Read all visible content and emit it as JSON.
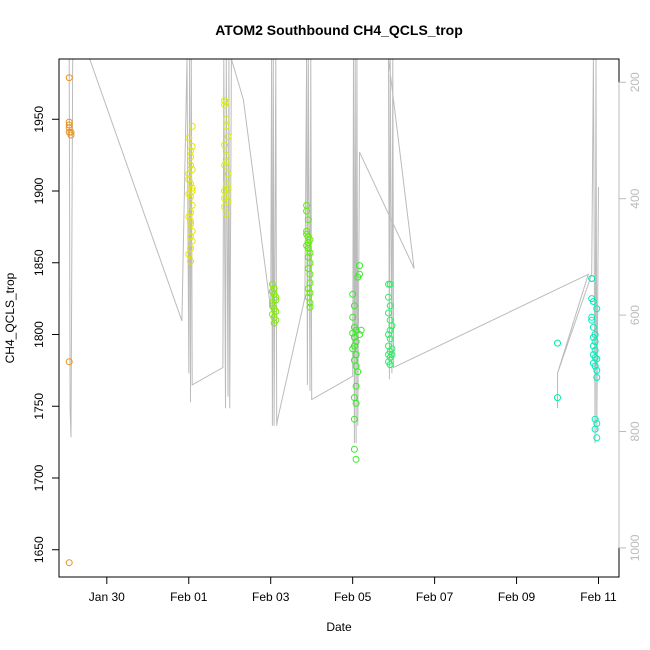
{
  "chart_data": {
    "type": "scatter",
    "title": "ATOM2 Southbound CH4_QCLS_trop",
    "xlabel": "Date",
    "ylabel": "CH4_QCLS_trop",
    "x_is_date": true,
    "xlim": [
      "2017-01-28T20:00",
      "2017-02-11T12:00"
    ],
    "ylim": [
      1631,
      1992
    ],
    "y2lim": [
      1050,
      160
    ],
    "x_ticks": [
      {
        "date": "2017-01-30",
        "label": "Jan 30"
      },
      {
        "date": "2017-02-01",
        "label": "Feb 01"
      },
      {
        "date": "2017-02-03",
        "label": "Feb 03"
      },
      {
        "date": "2017-02-05",
        "label": "Feb 05"
      },
      {
        "date": "2017-02-07",
        "label": "Feb 07"
      },
      {
        "date": "2017-02-09",
        "label": "Feb 09"
      },
      {
        "date": "2017-02-11",
        "label": "Feb 11"
      }
    ],
    "y_ticks": [
      1650,
      1700,
      1750,
      1800,
      1850,
      1900,
      1950
    ],
    "y2_ticks": [
      200,
      400,
      600,
      800,
      1000
    ],
    "grid": false,
    "legend": "none",
    "series": [
      {
        "color": "#E8931E",
        "points": [
          [
            "2017-01-29T02:00",
            1979
          ],
          [
            "2017-01-29T02:00",
            1948
          ],
          [
            "2017-01-29T02:00",
            1946
          ],
          [
            "2017-01-29T02:00",
            1944
          ],
          [
            "2017-01-29T02:00",
            1941
          ],
          [
            "2017-01-29T03:00",
            1939
          ],
          [
            "2017-01-29T03:00",
            1941
          ],
          [
            "2017-01-29T02:00",
            1781
          ],
          [
            "2017-01-29T02:00",
            1641
          ]
        ]
      },
      {
        "color": "#E6E600",
        "points": [
          [
            "2017-02-01T00:00",
            1937
          ],
          [
            "2017-02-01T01:00",
            1928
          ],
          [
            "2017-02-01T01:00",
            1924
          ],
          [
            "2017-02-01T02:00",
            1945
          ],
          [
            "2017-02-01T01:00",
            1918
          ],
          [
            "2017-02-01T00:00",
            1912
          ],
          [
            "2017-02-01T01:00",
            1905
          ],
          [
            "2017-02-01T02:00",
            1902
          ],
          [
            "2017-02-01T00:00",
            1898
          ],
          [
            "2017-02-01T01:00",
            1896
          ],
          [
            "2017-02-01T02:00",
            1890
          ],
          [
            "2017-02-01T01:00",
            1885
          ],
          [
            "2017-02-01T00:00",
            1882
          ],
          [
            "2017-02-01T01:00",
            1877
          ],
          [
            "2017-02-01T02:00",
            1872
          ],
          [
            "2017-02-01T01:00",
            1868
          ],
          [
            "2017-02-01T02:00",
            1865
          ],
          [
            "2017-02-01T01:00",
            1860
          ],
          [
            "2017-02-01T00:00",
            1856
          ],
          [
            "2017-02-01T01:00",
            1851
          ],
          [
            "2017-02-01T02:00",
            1915
          ],
          [
            "2017-02-01T00:00",
            1908
          ],
          [
            "2017-02-01T02:00",
            1931
          ],
          [
            "2017-02-01T01:00",
            1879
          ],
          [
            "2017-02-01T02:00",
            1900
          ]
        ]
      },
      {
        "color": "#D8F000",
        "points": [
          [
            "2017-02-01T21:00",
            1963
          ],
          [
            "2017-02-01T22:00",
            1962
          ],
          [
            "2017-02-01T21:00",
            1960
          ],
          [
            "2017-02-01T22:00",
            1950
          ],
          [
            "2017-02-01T22:00",
            1945
          ],
          [
            "2017-02-01T23:00",
            1938
          ],
          [
            "2017-02-01T21:00",
            1932
          ],
          [
            "2017-02-01T22:00",
            1925
          ],
          [
            "2017-02-01T21:00",
            1918
          ],
          [
            "2017-02-01T23:00",
            1912
          ],
          [
            "2017-02-01T22:00",
            1905
          ],
          [
            "2017-02-01T21:00",
            1900
          ],
          [
            "2017-02-01T22:00",
            1897
          ],
          [
            "2017-02-01T23:00",
            1893
          ],
          [
            "2017-02-01T21:00",
            1889
          ],
          [
            "2017-02-01T22:00",
            1884
          ],
          [
            "2017-02-01T21:00",
            1895
          ],
          [
            "2017-02-01T23:00",
            1902
          ],
          [
            "2017-02-01T22:00",
            1920
          ]
        ]
      },
      {
        "color": "#80EE00",
        "points": [
          [
            "2017-02-03T01:00",
            1835
          ],
          [
            "2017-02-03T02:00",
            1832
          ],
          [
            "2017-02-03T01:00",
            1830
          ],
          [
            "2017-02-03T02:00",
            1828
          ],
          [
            "2017-02-03T03:00",
            1826
          ],
          [
            "2017-02-03T01:00",
            1822
          ],
          [
            "2017-02-03T02:00",
            1818
          ],
          [
            "2017-02-03T03:00",
            1816
          ],
          [
            "2017-02-03T01:00",
            1814
          ],
          [
            "2017-02-03T02:00",
            1812
          ],
          [
            "2017-02-03T03:00",
            1810
          ],
          [
            "2017-02-03T02:00",
            1808
          ],
          [
            "2017-02-03T01:00",
            1820
          ],
          [
            "2017-02-03T03:00",
            1824
          ]
        ]
      },
      {
        "color": "#5FEE00",
        "points": [
          [
            "2017-02-03T21:00",
            1890
          ],
          [
            "2017-02-03T21:00",
            1886
          ],
          [
            "2017-02-03T22:00",
            1880
          ],
          [
            "2017-02-03T21:00",
            1872
          ],
          [
            "2017-02-03T22:00",
            1868
          ],
          [
            "2017-02-03T23:00",
            1866
          ],
          [
            "2017-02-03T22:00",
            1864
          ],
          [
            "2017-02-03T21:00",
            1862
          ],
          [
            "2017-02-03T22:00",
            1860
          ],
          [
            "2017-02-03T23:00",
            1857
          ],
          [
            "2017-02-03T22:00",
            1854
          ],
          [
            "2017-02-03T23:00",
            1850
          ],
          [
            "2017-02-03T22:00",
            1846
          ],
          [
            "2017-02-03T23:00",
            1836
          ],
          [
            "2017-02-03T22:00",
            1832
          ],
          [
            "2017-02-03T23:00",
            1829
          ],
          [
            "2017-02-03T22:00",
            1826
          ],
          [
            "2017-02-03T23:00",
            1822
          ],
          [
            "2017-02-03T23:00",
            1819
          ],
          [
            "2017-02-03T21:00",
            1870
          ],
          [
            "2017-02-03T23:00",
            1842
          ]
        ]
      },
      {
        "color": "#33EE22",
        "points": [
          [
            "2017-02-05T00:00",
            1828
          ],
          [
            "2017-02-05T01:00",
            1820
          ],
          [
            "2017-02-05T00:00",
            1812
          ],
          [
            "2017-02-05T01:00",
            1805
          ],
          [
            "2017-02-05T02:00",
            1803
          ],
          [
            "2017-02-05T00:00",
            1801
          ],
          [
            "2017-02-05T01:00",
            1798
          ],
          [
            "2017-02-05T02:00",
            1795
          ],
          [
            "2017-02-05T01:00",
            1792
          ],
          [
            "2017-02-05T00:00",
            1790
          ],
          [
            "2017-02-05T02:00",
            1786
          ],
          [
            "2017-02-05T01:00",
            1782
          ],
          [
            "2017-02-05T02:00",
            1778
          ],
          [
            "2017-02-05T03:00",
            1774
          ],
          [
            "2017-02-05T02:00",
            1764
          ],
          [
            "2017-02-05T01:00",
            1756
          ],
          [
            "2017-02-05T02:00",
            1752
          ],
          [
            "2017-02-05T01:00",
            1741
          ],
          [
            "2017-02-05T01:00",
            1720
          ],
          [
            "2017-02-05T02:00",
            1713
          ],
          [
            "2017-02-05T04:00",
            1848
          ],
          [
            "2017-02-05T04:00",
            1842
          ],
          [
            "2017-02-05T03:00",
            1840
          ],
          [
            "2017-02-05T05:00",
            1803
          ],
          [
            "2017-02-05T04:00",
            1800
          ]
        ]
      },
      {
        "color": "#2EEE66",
        "points": [
          [
            "2017-02-05T21:00",
            1835
          ],
          [
            "2017-02-05T22:00",
            1835
          ],
          [
            "2017-02-05T21:00",
            1826
          ],
          [
            "2017-02-05T22:00",
            1820
          ],
          [
            "2017-02-05T21:00",
            1815
          ],
          [
            "2017-02-05T22:00",
            1810
          ],
          [
            "2017-02-05T23:00",
            1806
          ],
          [
            "2017-02-05T22:00",
            1803
          ],
          [
            "2017-02-05T21:00",
            1800
          ],
          [
            "2017-02-05T22:00",
            1797
          ],
          [
            "2017-02-05T23:00",
            1790
          ],
          [
            "2017-02-05T22:00",
            1788
          ],
          [
            "2017-02-05T21:00",
            1786
          ],
          [
            "2017-02-05T22:00",
            1784
          ],
          [
            "2017-02-05T21:00",
            1781
          ],
          [
            "2017-02-05T22:00",
            1779
          ],
          [
            "2017-02-05T23:00",
            1786
          ],
          [
            "2017-02-05T21:00",
            1792
          ]
        ]
      },
      {
        "color": "#00EE99",
        "points": [
          [
            "2017-02-10T00:00",
            1794
          ],
          [
            "2017-02-10T00:00",
            1756
          ]
        ]
      },
      {
        "color": "#00EEBB",
        "points": [
          [
            "2017-02-10T20:00",
            1839
          ],
          [
            "2017-02-10T20:00",
            1839
          ],
          [
            "2017-02-10T20:00",
            1825
          ],
          [
            "2017-02-10T21:00",
            1823
          ],
          [
            "2017-02-10T20:00",
            1812
          ],
          [
            "2017-02-10T21:00",
            1805
          ],
          [
            "2017-02-10T22:00",
            1800
          ],
          [
            "2017-02-10T21:00",
            1798
          ],
          [
            "2017-02-10T22:00",
            1795
          ],
          [
            "2017-02-10T21:00",
            1792
          ],
          [
            "2017-02-10T22:00",
            1789
          ],
          [
            "2017-02-10T21:00",
            1786
          ],
          [
            "2017-02-10T22:00",
            1784
          ],
          [
            "2017-02-10T23:00",
            1783
          ],
          [
            "2017-02-10T21:00",
            1780
          ],
          [
            "2017-02-10T22:00",
            1778
          ],
          [
            "2017-02-10T23:00",
            1775
          ],
          [
            "2017-02-10T23:00",
            1770
          ],
          [
            "2017-02-10T22:00",
            1741
          ],
          [
            "2017-02-10T23:00",
            1738
          ],
          [
            "2017-02-10T22:00",
            1734
          ],
          [
            "2017-02-10T23:00",
            1728
          ],
          [
            "2017-02-10T20:00",
            1810
          ],
          [
            "2017-02-10T23:00",
            1818
          ]
        ]
      }
    ],
    "pressure_trace": {
      "color": "#bbbbbb",
      "points": [
        [
          "2017-01-29T00:00",
          120
        ],
        [
          "2017-01-29T02:00",
          120
        ],
        [
          "2017-01-29T02:30",
          760
        ],
        [
          "2017-01-29T03:00",
          810
        ],
        [
          "2017-01-29T04:00",
          120
        ],
        [
          "2017-01-29T14:00",
          110
        ],
        [
          "2017-01-31T20:00",
          610
        ],
        [
          "2017-01-31T23:00",
          120
        ],
        [
          "2017-02-01T00:00",
          700
        ],
        [
          "2017-02-01T00:30",
          140
        ],
        [
          "2017-02-01T01:00",
          750
        ],
        [
          "2017-02-01T01:30",
          130
        ],
        [
          "2017-02-01T02:00",
          720
        ],
        [
          "2017-02-01T02:00",
          720
        ],
        [
          "2017-02-01T20:00",
          690
        ],
        [
          "2017-02-01T20:30",
          130
        ],
        [
          "2017-02-01T21:30",
          760
        ],
        [
          "2017-02-01T22:00",
          140
        ],
        [
          "2017-02-01T23:00",
          740
        ],
        [
          "2017-02-01T23:30",
          130
        ],
        [
          "2017-02-02T00:00",
          760
        ],
        [
          "2017-02-02T01:00",
          130
        ],
        [
          "2017-02-02T08:00",
          230
        ],
        [
          "2017-02-03T00:00",
          590
        ],
        [
          "2017-02-03T00:30",
          130
        ],
        [
          "2017-02-03T01:00",
          790
        ],
        [
          "2017-02-03T01:30",
          130
        ],
        [
          "2017-02-03T02:00",
          790
        ],
        [
          "2017-02-03T03:00",
          130
        ],
        [
          "2017-02-03T03:30",
          790
        ],
        [
          "2017-02-03T04:00",
          780
        ],
        [
          "2017-02-03T20:00",
          570
        ],
        [
          "2017-02-03T21:00",
          130
        ],
        [
          "2017-02-03T21:30",
          720
        ],
        [
          "2017-02-03T22:00",
          130
        ],
        [
          "2017-02-03T23:00",
          730
        ],
        [
          "2017-02-03T23:30",
          130
        ],
        [
          "2017-02-04T00:00",
          745
        ],
        [
          "2017-02-04T00:00",
          745
        ],
        [
          "2017-02-05T00:00",
          705
        ],
        [
          "2017-02-05T00:30",
          130
        ],
        [
          "2017-02-05T01:00",
          820
        ],
        [
          "2017-02-05T01:30",
          130
        ],
        [
          "2017-02-05T02:00",
          820
        ],
        [
          "2017-02-05T02:30",
          130
        ],
        [
          "2017-02-05T03:00",
          790
        ],
        [
          "2017-02-05T04:00",
          320
        ],
        [
          "2017-02-05T04:00",
          320
        ],
        [
          "2017-02-06T12:00",
          520
        ],
        [
          "2017-02-05T21:00",
          130
        ],
        [
          "2017-02-05T21:30",
          710
        ],
        [
          "2017-02-05T22:00",
          130
        ],
        [
          "2017-02-05T23:00",
          700
        ],
        [
          "2017-02-05T23:30",
          130
        ],
        [
          "2017-02-06T00:00",
          690
        ],
        [
          "2017-02-06T00:00",
          690
        ],
        [
          "2017-02-10T18:00",
          530
        ],
        [
          "2017-02-10T00:00",
          700
        ],
        [
          "2017-02-10T00:00",
          760
        ],
        [
          "2017-02-10T00:00",
          700
        ],
        [
          "2017-02-10T20:00",
          530
        ],
        [
          "2017-02-10T21:00",
          130
        ],
        [
          "2017-02-10T22:00",
          820
        ],
        [
          "2017-02-10T22:30",
          130
        ],
        [
          "2017-02-10T23:00",
          800
        ],
        [
          "2017-02-11T00:00",
          380
        ]
      ]
    }
  }
}
